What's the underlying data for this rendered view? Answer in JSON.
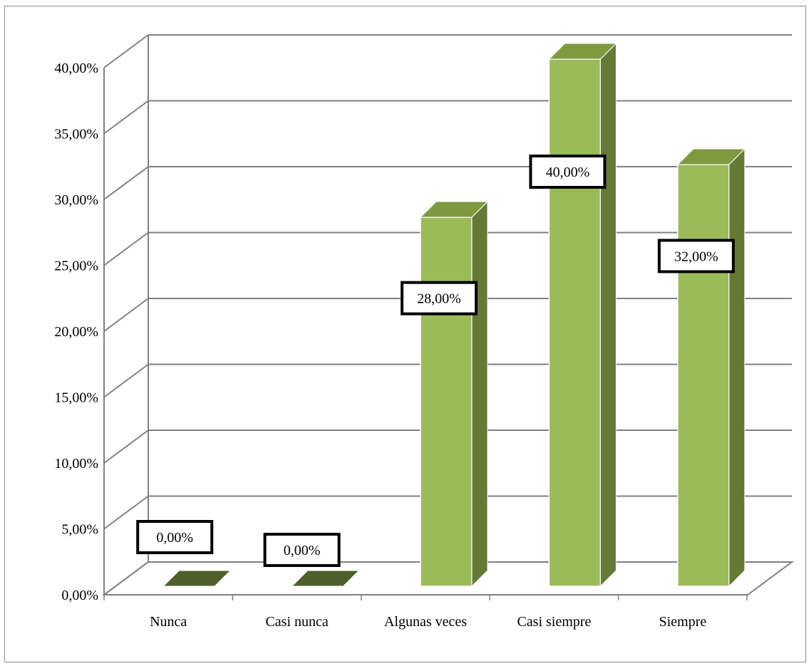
{
  "chart_data": {
    "type": "bar",
    "categories": [
      "Nunca",
      "Casi nunca",
      "Algunas veces",
      "Casi siempre",
      "Siempre"
    ],
    "values": [
      0.0,
      0.0,
      28.0,
      40.0,
      32.0
    ],
    "data_labels": [
      "0,00%",
      "0,00%",
      "28,00%",
      "40,00%",
      "32,00%"
    ],
    "y_ticks": [
      0,
      5,
      10,
      15,
      20,
      25,
      30,
      35,
      40
    ],
    "y_tick_labels": [
      "0,00%",
      "5,00%",
      "10,00%",
      "15,00%",
      "20,00%",
      "25,00%",
      "30,00%",
      "35,00%",
      "40,00%"
    ],
    "ylim": [
      0,
      40
    ],
    "grid": true,
    "style": "3d-column",
    "legend": "none",
    "colors": {
      "bar_front": "#9bbb59",
      "bar_side": "#667a37",
      "bar_top": "#7d9a40",
      "bar_zero": "#4f5f2c",
      "grid": "#808080",
      "label_border": "#000000"
    }
  }
}
